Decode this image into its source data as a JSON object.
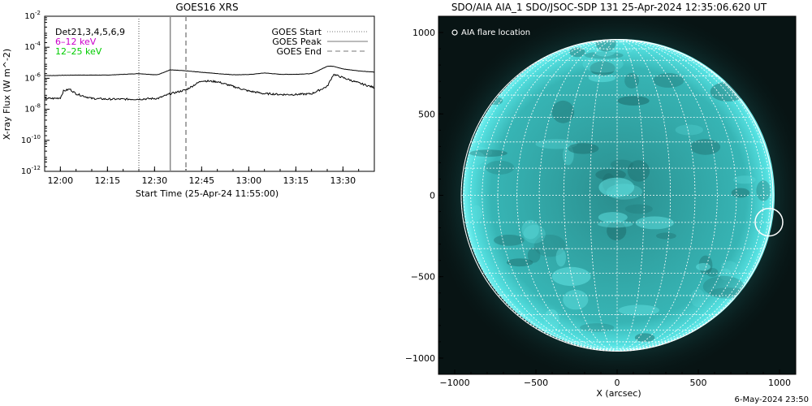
{
  "chart_data": [
    {
      "type": "line",
      "title": "GOES16 XRS",
      "xlabel": "Start Time (25-Apr-24 11:55:00)",
      "ylabel": "X-ray Flux (W m^-2)",
      "x_unit": "minutes after 11:55:00",
      "xlim": [
        "11:55",
        "13:40"
      ],
      "ylim": [
        1e-12,
        0.01
      ],
      "y_scale": "log",
      "x_ticks": [
        "12:00",
        "12:15",
        "12:30",
        "12:45",
        "13:00",
        "13:15",
        "13:30"
      ],
      "y_ticks": [
        "10^-2",
        "10^-4",
        "10^-6",
        "10^-8",
        "10^-10",
        "10^-12"
      ],
      "legend_left": {
        "detectors": "Det21,3,4,5,6,9",
        "entries": [
          {
            "label": "6–12 keV",
            "color": "#cc00cc"
          },
          {
            "label": "12–25 keV",
            "color": "#00cc00"
          }
        ]
      },
      "legend_right": [
        {
          "label": "GOES Start",
          "style": "dotted"
        },
        {
          "label": "GOES Peak",
          "style": "solid"
        },
        {
          "label": "GOES End",
          "style": "dashed"
        }
      ],
      "vertical_markers": {
        "start": "12:25",
        "peak": "12:35",
        "end": "12:40"
      },
      "series": [
        {
          "band": "long",
          "x_minutes": [
            0,
            3,
            5,
            10,
            20,
            30,
            35,
            36,
            40,
            45,
            55,
            60,
            63,
            66,
            70,
            75,
            80,
            85,
            87,
            90,
            92,
            95,
            100,
            105
          ],
          "values": [
            1.5e-06,
            1.5e-06,
            1.55e-06,
            1.6e-06,
            1.6e-06,
            2e-06,
            1.7e-06,
            1.7e-06,
            3.5e-06,
            3e-06,
            2e-06,
            1.7e-06,
            1.7e-06,
            1.8e-06,
            2.2e-06,
            1.8e-06,
            1.8e-06,
            2e-06,
            3e-06,
            6e-06,
            6e-06,
            4e-06,
            3e-06,
            2.5e-06
          ]
        },
        {
          "band": "short",
          "x_minutes": [
            0,
            3,
            5,
            6,
            8,
            10,
            15,
            20,
            25,
            30,
            35,
            36,
            40,
            45,
            50,
            55,
            60,
            65,
            68,
            70,
            72,
            75,
            80,
            85,
            90,
            92,
            95,
            100,
            105
          ],
          "values": [
            5e-08,
            5e-08,
            5.5e-08,
            1.5e-07,
            2e-07,
            1e-07,
            5e-08,
            4.5e-08,
            4.5e-08,
            4.5e-08,
            5e-08,
            5e-08,
            1e-07,
            1.8e-07,
            7e-07,
            6e-07,
            3e-07,
            1.5e-07,
            1.2e-07,
            1e-07,
            1e-07,
            9e-08,
            9e-08,
            1e-07,
            3e-07,
            1.8e-06,
            1.1e-06,
            5e-07,
            2.5e-07
          ]
        }
      ]
    },
    {
      "type": "image",
      "title": "SDO/AIA AIA_1 SDO/JSOC-SDP 131 25-Apr-2024 12:35:06.620 UT",
      "xlabel": "X (arcsec)",
      "ylabel": "",
      "xlim": [
        -1100,
        1100
      ],
      "ylim": [
        -1100,
        1100
      ],
      "x_ticks": [
        -1000,
        -500,
        0,
        500,
        1000
      ],
      "y_ticks": [
        -1000,
        -500,
        0,
        500,
        1000
      ],
      "legend": "AIA flare location",
      "flare_location": {
        "x": 935,
        "y": -165,
        "r": 85
      },
      "grid_spacing_deg": 10
    }
  ],
  "footer_timestamp": "6-May-2024 23:50",
  "colors": {
    "aia_disk": "#3ec6c6",
    "aia_disk_edge": "#0f6464",
    "aia_background": "#081414",
    "aia_grid": "#ffffff"
  }
}
